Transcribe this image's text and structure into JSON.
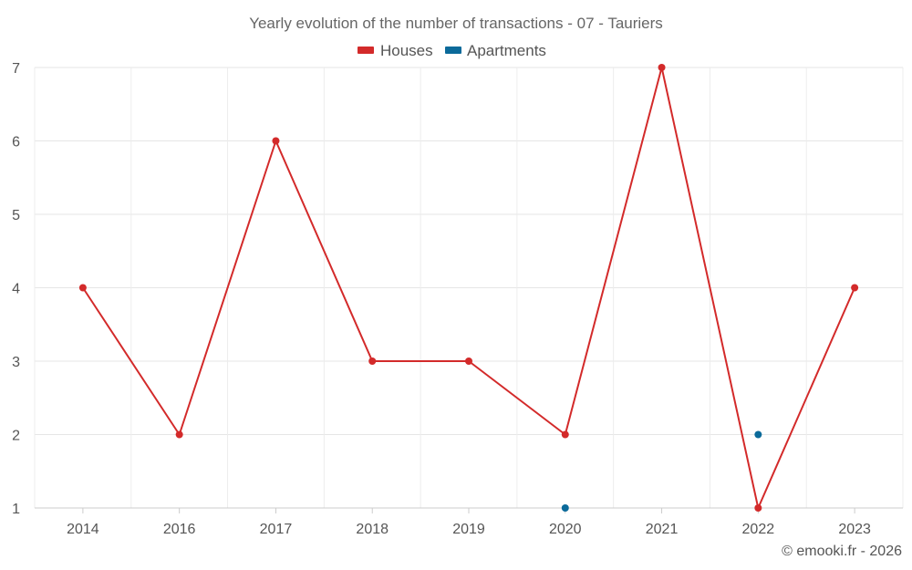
{
  "chart_data": {
    "type": "line",
    "title": "Yearly evolution of the number of transactions - 07 - Tauriers",
    "categories": [
      "2014",
      "2016",
      "2017",
      "2018",
      "2019",
      "2020",
      "2021",
      "2022",
      "2023"
    ],
    "series": [
      {
        "name": "Houses",
        "color": "#d32a2a",
        "values": [
          4,
          2,
          6,
          3,
          3,
          2,
          7,
          1,
          4
        ]
      },
      {
        "name": "Apartments",
        "color": "#0b6a9a",
        "values": [
          null,
          null,
          null,
          null,
          null,
          1,
          null,
          2,
          null
        ]
      }
    ],
    "xlabel": "",
    "ylabel": "",
    "ylim": [
      1,
      7
    ],
    "yticks": [
      1,
      2,
      3,
      4,
      5,
      6,
      7
    ],
    "grid": true,
    "legend": "top-center"
  },
  "credit": "© emooki.fr - 2026"
}
